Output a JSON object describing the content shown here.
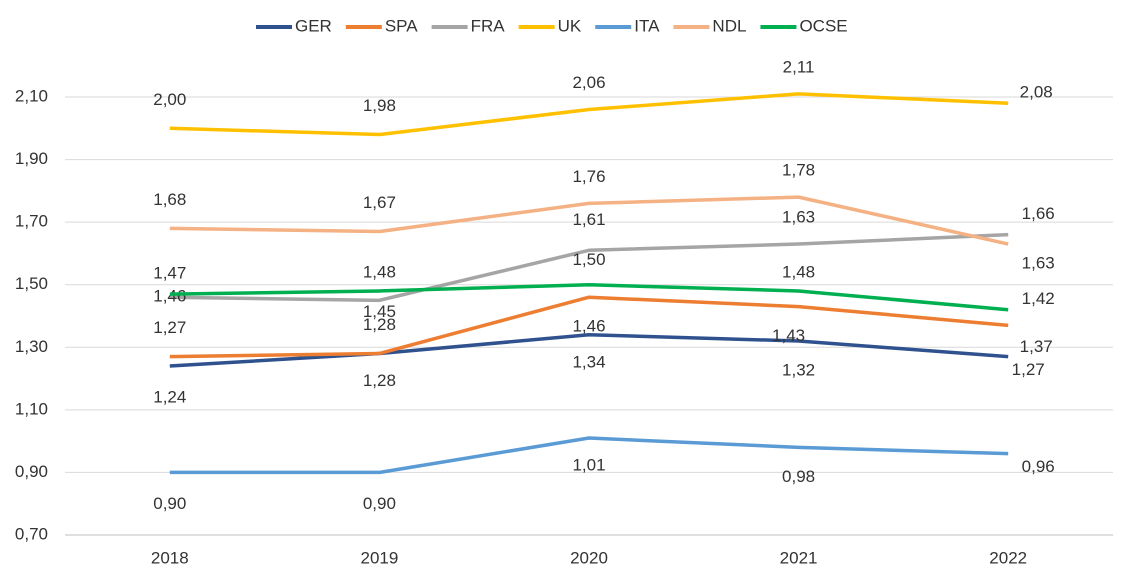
{
  "chart_data": {
    "type": "line",
    "categories": [
      "2018",
      "2019",
      "2020",
      "2021",
      "2022"
    ],
    "series": [
      {
        "name": "GER",
        "color": "#2f528f",
        "values": [
          1.24,
          1.28,
          1.34,
          1.32,
          1.27
        ],
        "value_labels": [
          "1,24",
          "1,28",
          "1,34",
          "1,32",
          "1,27"
        ]
      },
      {
        "name": "SPA",
        "color": "#ed7d31",
        "values": [
          1.27,
          1.28,
          1.46,
          1.43,
          1.37
        ],
        "value_labels": [
          "1,27",
          "1,28",
          "1,46",
          "1,43",
          "1,37"
        ]
      },
      {
        "name": "FRA",
        "color": "#a5a5a5",
        "values": [
          1.46,
          1.45,
          1.61,
          1.63,
          1.66
        ],
        "value_labels": [
          "1,46",
          "1,45",
          "1,61",
          "1,63",
          "1,66"
        ]
      },
      {
        "name": "UK",
        "color": "#ffc000",
        "values": [
          2.0,
          1.98,
          2.06,
          2.11,
          2.08
        ],
        "value_labels": [
          "2,00",
          "1,98",
          "2,06",
          "2,11",
          "2,08"
        ]
      },
      {
        "name": "ITA",
        "color": "#5b9bd5",
        "values": [
          0.9,
          0.9,
          1.01,
          0.98,
          0.96
        ],
        "value_labels": [
          "0,90",
          "0,90",
          "1,01",
          "0,98",
          "0,96"
        ]
      },
      {
        "name": "NDL",
        "color": "#f4b183",
        "values": [
          1.68,
          1.67,
          1.76,
          1.78,
          1.63
        ],
        "value_labels": [
          "1,68",
          "1,67",
          "1,76",
          "1,78",
          "1,63"
        ]
      },
      {
        "name": "OCSE",
        "color": "#00b050",
        "values": [
          1.47,
          1.48,
          1.5,
          1.48,
          1.42
        ],
        "value_labels": [
          "1,47",
          "1,48",
          "1,50",
          "1,48",
          "1,42"
        ]
      }
    ],
    "ylim": [
      0.7,
      2.1
    ],
    "yticks": [
      {
        "value": 0.7,
        "label": "0,70"
      },
      {
        "value": 0.9,
        "label": "0,90"
      },
      {
        "value": 1.1,
        "label": "1,10"
      },
      {
        "value": 1.3,
        "label": "1,30"
      },
      {
        "value": 1.5,
        "label": "1,50"
      },
      {
        "value": 1.7,
        "label": "1,70"
      },
      {
        "value": 1.9,
        "label": "1,90"
      },
      {
        "value": 2.1,
        "label": "2,10"
      }
    ],
    "grid": true,
    "legend": "top"
  }
}
